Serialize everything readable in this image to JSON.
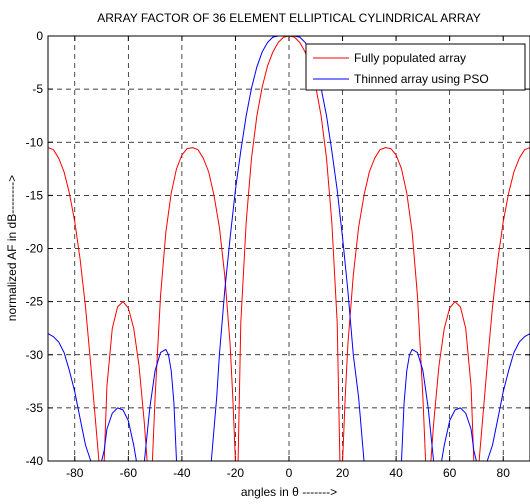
{
  "chart_data": {
    "type": "line",
    "title": "ARRAY FACTOR OF 36 ELEMENT ELLIPTICAL CYLINDRICAL ARRAY",
    "xlabel": "angles in θ  ------->",
    "ylabel": "normalized AF in dB-------->",
    "xlim": [
      -90,
      90
    ],
    "ylim": [
      -40,
      0
    ],
    "xticks": [
      -80,
      -60,
      -40,
      -20,
      0,
      20,
      40,
      60,
      80
    ],
    "yticks": [
      0,
      -5,
      -10,
      -15,
      -20,
      -25,
      -30,
      -35,
      -40
    ],
    "xtick_labels": [
      "-80",
      "-60",
      "-40",
      "-20",
      "0",
      "20",
      "40",
      "60",
      "80"
    ],
    "ytick_labels": [
      "0",
      "-5",
      "-10",
      "-15",
      "-20",
      "-25",
      "-30",
      "-35",
      "-40"
    ],
    "grid": true,
    "legend_position": "top-right",
    "series": [
      {
        "name": "Fully populated array",
        "color": "#ff0000",
        "x": [
          -90,
          -88,
          -86,
          -84,
          -82,
          -80,
          -78,
          -76,
          -74,
          -72,
          -71,
          -70,
          -69,
          -68,
          -66,
          -64,
          -62,
          -60,
          -58,
          -56,
          -54,
          -53,
          -52,
          -51,
          -50,
          -48,
          -46,
          -44,
          -42,
          -40,
          -38,
          -36,
          -34,
          -32,
          -30,
          -28,
          -26,
          -24,
          -22,
          -21,
          -20,
          -19,
          -18,
          -16,
          -14,
          -12,
          -10,
          -8,
          -6,
          -4,
          -2,
          0,
          2,
          4,
          6,
          8,
          10,
          12,
          14,
          16,
          18,
          19,
          20,
          21,
          22,
          24,
          26,
          28,
          30,
          32,
          34,
          36,
          38,
          40,
          42,
          44,
          46,
          48,
          50,
          51,
          52,
          53,
          54,
          56,
          58,
          60,
          62,
          64,
          66,
          68,
          69,
          70,
          71,
          72,
          74,
          76,
          78,
          80,
          82,
          84,
          86,
          88,
          90
        ],
        "y": [
          -10.5,
          -10.7,
          -11.5,
          -12.8,
          -14.8,
          -17.5,
          -21.0,
          -25.5,
          -31.0,
          -37.0,
          -40.0,
          -40.0,
          -40.0,
          -33.0,
          -27.5,
          -25.5,
          -25.0,
          -25.6,
          -27.5,
          -31.0,
          -36.5,
          -40.0,
          -40.0,
          -40.0,
          -34.0,
          -24.5,
          -18.5,
          -14.8,
          -12.5,
          -11.2,
          -10.6,
          -10.5,
          -10.7,
          -11.5,
          -12.8,
          -15.0,
          -18.0,
          -22.5,
          -29.0,
          -34.0,
          -40.0,
          -40.0,
          -27.0,
          -17.5,
          -11.5,
          -7.5,
          -4.8,
          -2.8,
          -1.5,
          -0.6,
          -0.1,
          0.0,
          -0.1,
          -0.6,
          -1.5,
          -2.8,
          -4.8,
          -7.5,
          -11.5,
          -17.5,
          -27.0,
          -40.0,
          -40.0,
          -34.0,
          -29.0,
          -22.5,
          -18.0,
          -15.0,
          -12.8,
          -11.5,
          -10.7,
          -10.5,
          -10.6,
          -11.2,
          -12.5,
          -14.8,
          -18.5,
          -24.5,
          -34.0,
          -40.0,
          -40.0,
          -40.0,
          -36.5,
          -31.0,
          -27.5,
          -25.6,
          -25.0,
          -25.5,
          -27.5,
          -33.0,
          -40.0,
          -40.0,
          -40.0,
          -37.0,
          -31.0,
          -25.5,
          -21.0,
          -17.5,
          -14.8,
          -12.8,
          -11.5,
          -10.7,
          -10.5
        ]
      },
      {
        "name": "Thinned array using PSO",
        "color": "#0000ff",
        "x": [
          -90,
          -88,
          -86,
          -84,
          -82,
          -80,
          -78,
          -76,
          -74,
          -72,
          -71,
          -70,
          -69,
          -68,
          -66,
          -64,
          -62,
          -60,
          -58,
          -57,
          -56,
          -55,
          -54,
          -52,
          -50,
          -48,
          -46,
          -45,
          -44,
          -43,
          -42,
          -40,
          -38,
          -36,
          -34,
          -32,
          -30,
          -29,
          -28,
          -27,
          -26,
          -24,
          -22,
          -20,
          -18,
          -16,
          -14,
          -12,
          -10,
          -8,
          -6,
          -4,
          -2,
          0,
          2,
          4,
          6,
          8,
          10,
          12,
          14,
          16,
          18,
          20,
          22,
          24,
          26,
          27,
          28,
          29,
          30,
          32,
          34,
          36,
          38,
          40,
          42,
          43,
          44,
          45,
          46,
          48,
          50,
          52,
          54,
          55,
          56,
          57,
          58,
          60,
          62,
          64,
          66,
          68,
          69,
          70,
          71,
          72,
          74,
          76,
          78,
          80,
          82,
          84,
          86,
          88,
          90
        ],
        "y": [
          -28.0,
          -28.3,
          -28.8,
          -29.8,
          -31.5,
          -33.5,
          -36.0,
          -38.5,
          -40.0,
          -40.0,
          -40.0,
          -40.0,
          -39.0,
          -37.0,
          -35.5,
          -35.0,
          -35.2,
          -36.2,
          -38.5,
          -40.0,
          -40.0,
          -40.0,
          -40.0,
          -35.0,
          -31.5,
          -29.8,
          -29.5,
          -30.0,
          -31.5,
          -34.5,
          -40.0,
          -40.0,
          -40.0,
          -40.0,
          -40.0,
          -40.0,
          -40.0,
          -40.0,
          -37.0,
          -34.0,
          -30.0,
          -24.0,
          -19.0,
          -14.5,
          -10.8,
          -7.5,
          -4.9,
          -2.9,
          -1.5,
          -0.6,
          -0.1,
          0.0,
          0.0,
          0.0,
          0.0,
          -0.1,
          -0.6,
          -1.5,
          -2.9,
          -4.9,
          -7.5,
          -10.8,
          -14.5,
          -19.0,
          -24.0,
          -30.0,
          -34.0,
          -37.0,
          -40.0,
          -40.0,
          -40.0,
          -40.0,
          -40.0,
          -40.0,
          -40.0,
          -40.0,
          -40.0,
          -34.5,
          -31.5,
          -30.0,
          -29.5,
          -29.8,
          -31.5,
          -35.0,
          -40.0,
          -40.0,
          -40.0,
          -40.0,
          -38.5,
          -36.2,
          -35.2,
          -35.0,
          -35.5,
          -37.0,
          -39.0,
          -40.0,
          -40.0,
          -40.0,
          -40.0,
          -38.5,
          -36.0,
          -33.5,
          -31.5,
          -29.8,
          -28.8,
          -28.3,
          -28.0
        ]
      }
    ]
  }
}
